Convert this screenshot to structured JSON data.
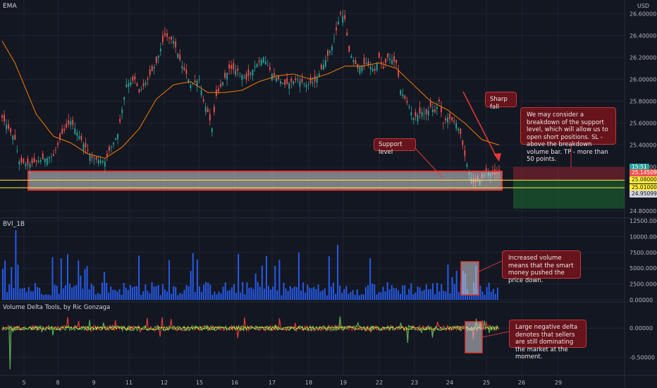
{
  "chart_data": {
    "type": "candlestick",
    "panes": {
      "price": {
        "indicator_label": "EMA",
        "currency": "USD",
        "ylim": [
          24.76,
          26.66
        ],
        "y_ticks": [
          "26.60000",
          "26.40000",
          "26.20000",
          "26.00000",
          "25.80000",
          "25.60000",
          "25.40000",
          "25.20000",
          "24.80000"
        ],
        "price_tags": [
          {
            "value": 25.2,
            "text": "15:51",
            "bg": "#26a69a",
            "fg": "#ffffff"
          },
          {
            "value": 25.14509,
            "text": "25.14509",
            "bg": "#ef5350",
            "fg": "#ffffff"
          },
          {
            "value": 25.08,
            "text": "25.08000",
            "bg": "#ffeb3b",
            "fg": "#131722"
          },
          {
            "value": 25.01,
            "text": "25.01000",
            "bg": "#ffeb3b",
            "fg": "#131722"
          },
          {
            "value": 24.95099,
            "text": "24.95099",
            "bg": "#d1d4dc",
            "fg": "#131722"
          }
        ],
        "support_zone": [
          24.99,
          25.16
        ],
        "support_lines": [
          25.08,
          25.01
        ],
        "close_path": [
          [
            0,
            25.65
          ],
          [
            3,
            25.45
          ],
          [
            4,
            25.25
          ],
          [
            6,
            25.22
          ],
          [
            8,
            25.25
          ],
          [
            12,
            25.3
          ],
          [
            14,
            25.5
          ],
          [
            16,
            25.62
          ],
          [
            18,
            25.48
          ],
          [
            21,
            25.28
          ],
          [
            24,
            25.25
          ],
          [
            25,
            25.35
          ],
          [
            27,
            25.5
          ],
          [
            29,
            25.95
          ],
          [
            31,
            26.0
          ],
          [
            32,
            25.88
          ],
          [
            34,
            26.0
          ],
          [
            36,
            26.15
          ],
          [
            37,
            26.28
          ],
          [
            38,
            26.4
          ],
          [
            40,
            26.35
          ],
          [
            42,
            26.12
          ],
          [
            43,
            26.05
          ],
          [
            44,
            25.95
          ],
          [
            46,
            26.0
          ],
          [
            47,
            25.8
          ],
          [
            48,
            25.7
          ],
          [
            49,
            25.55
          ],
          [
            50,
            25.85
          ],
          [
            53,
            26.1
          ],
          [
            55,
            26.08
          ],
          [
            57,
            26.0
          ],
          [
            59,
            26.12
          ],
          [
            61,
            26.2
          ],
          [
            63,
            26.05
          ],
          [
            66,
            25.95
          ],
          [
            69,
            26.0
          ],
          [
            71,
            25.95
          ],
          [
            73,
            25.98
          ],
          [
            74,
            26.05
          ],
          [
            77,
            26.3
          ],
          [
            78,
            26.45
          ],
          [
            79,
            26.6
          ],
          [
            80,
            26.55
          ],
          [
            81,
            26.25
          ],
          [
            83,
            26.1
          ],
          [
            85,
            26.15
          ],
          [
            87,
            26.08
          ],
          [
            88,
            26.2
          ],
          [
            89,
            26.1
          ],
          [
            90,
            26.2
          ],
          [
            92,
            26.15
          ],
          [
            93,
            25.9
          ],
          [
            95,
            25.75
          ],
          [
            96,
            25.65
          ],
          [
            98,
            25.7
          ],
          [
            99,
            25.68
          ],
          [
            100,
            25.75
          ],
          [
            101,
            25.7
          ],
          [
            102,
            25.8
          ],
          [
            103,
            25.6
          ],
          [
            104,
            25.65
          ],
          [
            106,
            25.6
          ],
          [
            107,
            25.5
          ],
          [
            108,
            25.3
          ],
          [
            109,
            25.15
          ],
          [
            110,
            25.05
          ],
          [
            111,
            25.07
          ],
          [
            112,
            25.1
          ],
          [
            113,
            25.16
          ],
          [
            115,
            25.13
          ],
          [
            116,
            25.15
          ]
        ],
        "ema_path": [
          [
            0,
            26.35
          ],
          [
            3,
            26.15
          ],
          [
            8,
            25.68
          ],
          [
            12,
            25.48
          ],
          [
            16,
            25.42
          ],
          [
            20,
            25.32
          ],
          [
            24,
            25.28
          ],
          [
            28,
            25.38
          ],
          [
            32,
            25.55
          ],
          [
            36,
            25.82
          ],
          [
            40,
            25.95
          ],
          [
            44,
            25.98
          ],
          [
            48,
            25.88
          ],
          [
            52,
            25.88
          ],
          [
            56,
            25.9
          ],
          [
            60,
            25.98
          ],
          [
            64,
            26.03
          ],
          [
            68,
            26.05
          ],
          [
            72,
            26.0
          ],
          [
            76,
            26.05
          ],
          [
            80,
            26.12
          ],
          [
            84,
            26.12
          ],
          [
            88,
            26.15
          ],
          [
            92,
            26.1
          ],
          [
            96,
            25.95
          ],
          [
            100,
            25.8
          ],
          [
            104,
            25.72
          ],
          [
            108,
            25.6
          ],
          [
            112,
            25.45
          ],
          [
            116,
            25.4
          ]
        ],
        "annotations": [
          {
            "text": "Support level"
          },
          {
            "text": "Sharp fall"
          },
          {
            "text": "We may consider a breakdown of the support level, which will allow us to open short positions. SL - above the breakdown volume bar. TP - more than 50 points."
          }
        ]
      },
      "volume": {
        "label": "BVI_1B",
        "ylim": [
          0,
          12500
        ],
        "y_ticks": [
          "12500.00000",
          "10000.00000",
          "7500.00000",
          "5000.00000",
          "2500.00000",
          "0.00000"
        ],
        "annotation": "Increased volume means that the smart money pushed the price down."
      },
      "delta": {
        "label": "Volume Delta Tools, by Ric Gonzaga",
        "ylim": [
          -0.78,
          0.4
        ],
        "y_ticks": [
          "0.00000",
          "-0.50000"
        ],
        "annotation": "Large negative delta denotes that sellers are still dominating the market at the moment."
      }
    },
    "x_ticks": [
      "5",
      "8",
      "9",
      "11",
      "12",
      "15",
      "16",
      "17",
      "18",
      "19",
      "22",
      "23",
      "24",
      "25",
      "26",
      "29"
    ]
  }
}
